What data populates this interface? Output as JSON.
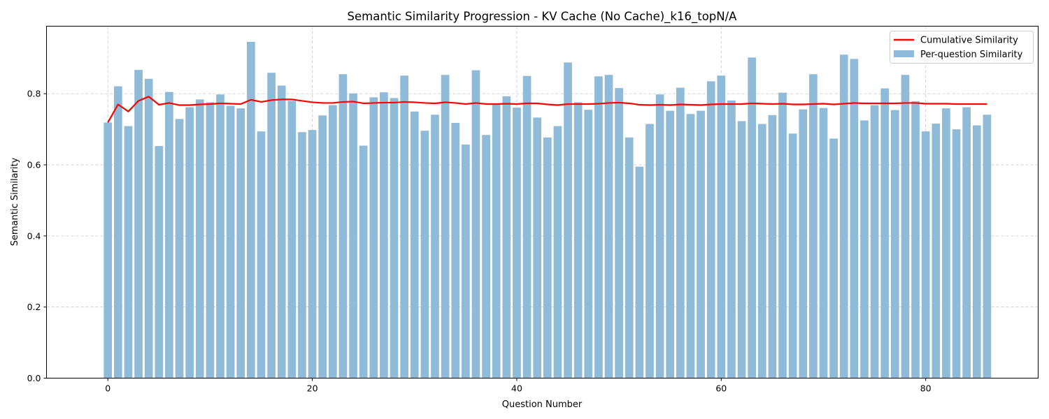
{
  "chart_data": {
    "type": "bar",
    "title": "Semantic Similarity Progression - KV Cache (No Cache)_k16_topN/A",
    "xlabel": "Question Number",
    "ylabel": "Semantic Similarity",
    "xlim": [
      -6,
      91
    ],
    "ylim": [
      0,
      0.99
    ],
    "xticks": [
      0,
      20,
      40,
      60,
      80
    ],
    "yticks": [
      0.0,
      0.2,
      0.4,
      0.6,
      0.8
    ],
    "xtick_labels": [
      "0",
      "20",
      "40",
      "60",
      "80"
    ],
    "ytick_labels": [
      "0.0",
      "0.2",
      "0.4",
      "0.6",
      "0.8"
    ],
    "grid": true,
    "legend_position": "top-right",
    "x": [
      0,
      1,
      2,
      3,
      4,
      5,
      6,
      7,
      8,
      9,
      10,
      11,
      12,
      13,
      14,
      15,
      16,
      17,
      18,
      19,
      20,
      21,
      22,
      23,
      24,
      25,
      26,
      27,
      28,
      29,
      30,
      31,
      32,
      33,
      34,
      35,
      36,
      37,
      38,
      39,
      40,
      41,
      42,
      43,
      44,
      45,
      46,
      47,
      48,
      49,
      50,
      51,
      52,
      53,
      54,
      55,
      56,
      57,
      58,
      59,
      60,
      61,
      62,
      63,
      64,
      65,
      66,
      67,
      68,
      69,
      70,
      71,
      72,
      73,
      74,
      75,
      76,
      77,
      78,
      79,
      80,
      81,
      82,
      83,
      84,
      85,
      86
    ],
    "series": [
      {
        "name": "Cumulative Similarity",
        "kind": "line",
        "color": "#ff0000",
        "values": [
          0.719,
          0.77,
          0.75,
          0.78,
          0.792,
          0.769,
          0.774,
          0.768,
          0.768,
          0.77,
          0.771,
          0.773,
          0.772,
          0.771,
          0.783,
          0.777,
          0.782,
          0.784,
          0.784,
          0.78,
          0.776,
          0.774,
          0.774,
          0.777,
          0.778,
          0.773,
          0.774,
          0.775,
          0.775,
          0.777,
          0.776,
          0.774,
          0.773,
          0.776,
          0.774,
          0.771,
          0.774,
          0.771,
          0.771,
          0.772,
          0.771,
          0.773,
          0.773,
          0.77,
          0.768,
          0.771,
          0.771,
          0.771,
          0.772,
          0.774,
          0.775,
          0.773,
          0.769,
          0.768,
          0.769,
          0.768,
          0.77,
          0.769,
          0.768,
          0.77,
          0.771,
          0.771,
          0.771,
          0.773,
          0.772,
          0.771,
          0.772,
          0.77,
          0.77,
          0.771,
          0.772,
          0.77,
          0.772,
          0.774,
          0.773,
          0.773,
          0.773,
          0.773,
          0.774,
          0.774,
          0.772,
          0.772,
          0.772,
          0.771,
          0.771,
          0.771,
          0.771
        ]
      },
      {
        "name": "Per-question Similarity",
        "kind": "bar",
        "color": "#8fbbd9",
        "values": [
          0.719,
          0.821,
          0.709,
          0.867,
          0.842,
          0.653,
          0.805,
          0.729,
          0.762,
          0.784,
          0.776,
          0.798,
          0.766,
          0.759,
          0.946,
          0.694,
          0.859,
          0.823,
          0.78,
          0.692,
          0.698,
          0.739,
          0.768,
          0.855,
          0.801,
          0.654,
          0.79,
          0.804,
          0.788,
          0.851,
          0.75,
          0.696,
          0.741,
          0.853,
          0.718,
          0.657,
          0.866,
          0.684,
          0.77,
          0.793,
          0.761,
          0.85,
          0.733,
          0.677,
          0.709,
          0.888,
          0.776,
          0.755,
          0.849,
          0.853,
          0.816,
          0.677,
          0.595,
          0.715,
          0.798,
          0.752,
          0.817,
          0.743,
          0.752,
          0.835,
          0.851,
          0.781,
          0.723,
          0.902,
          0.715,
          0.74,
          0.803,
          0.688,
          0.756,
          0.855,
          0.76,
          0.674,
          0.91,
          0.898,
          0.725,
          0.768,
          0.815,
          0.754,
          0.853,
          0.779,
          0.694,
          0.716,
          0.759,
          0.7,
          0.762,
          0.711,
          0.741
        ]
      }
    ]
  }
}
